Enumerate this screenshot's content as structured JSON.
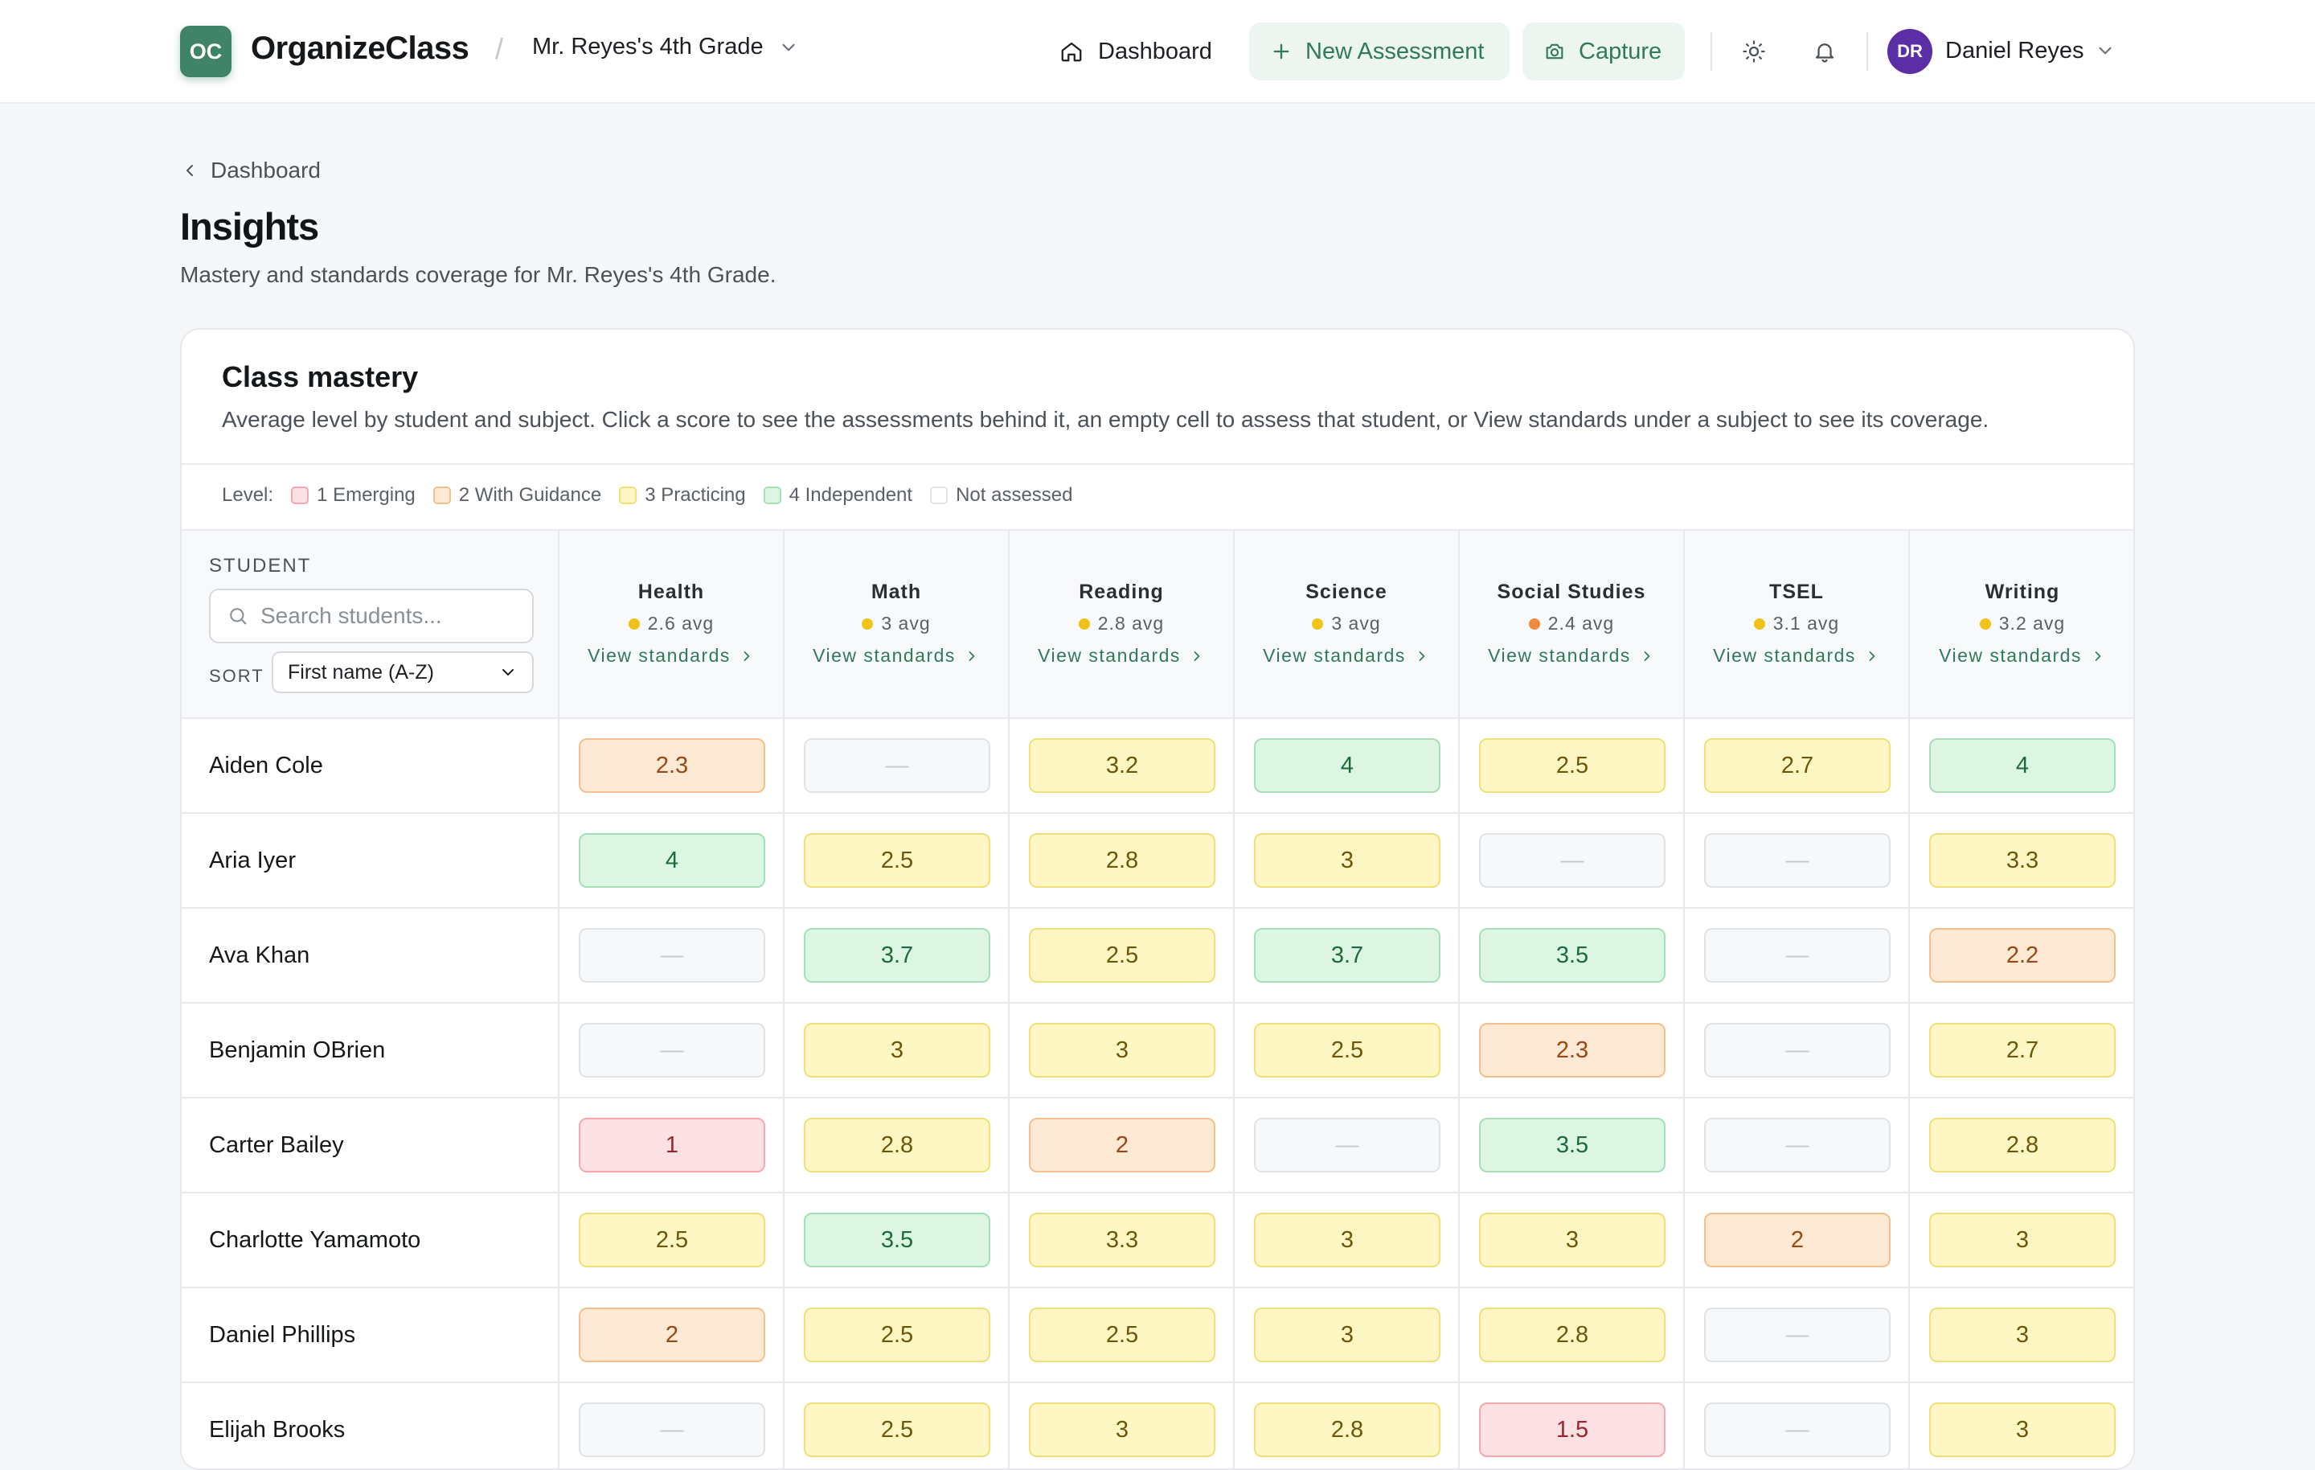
{
  "topbar": {
    "logo_initials": "OC",
    "app_name": "OrganizeClass",
    "separator": "/",
    "class_name": "Mr. Reyes's 4th Grade",
    "nav_dashboard": "Dashboard",
    "new_assessment": "New Assessment",
    "capture": "Capture",
    "user_initials": "DR",
    "user_name": "Daniel Reyes"
  },
  "page": {
    "back_label": "Dashboard",
    "title": "Insights",
    "subtitle": "Mastery and standards coverage for Mr. Reyes's 4th Grade."
  },
  "card": {
    "title": "Class mastery",
    "description": "Average level by student and subject. Click a score to see the assessments behind it, an empty cell to assess that student, or View standards under a subject to see its coverage.",
    "legend_label": "Level:",
    "legend": [
      {
        "label": "1 Emerging",
        "bg": "#fde0e2",
        "border": "#f3a9ae"
      },
      {
        "label": "2 With Guidance",
        "bg": "#fde9d4",
        "border": "#f5c08e"
      },
      {
        "label": "3 Practicing",
        "bg": "#fef7c3",
        "border": "#f1df7a"
      },
      {
        "label": "4 Independent",
        "bg": "#dcf6e3",
        "border": "#a7e0b8"
      },
      {
        "label": "Not assessed",
        "bg": "#ffffff",
        "border": "#e0e3e6"
      }
    ],
    "student_header": "STUDENT",
    "search_placeholder": "Search students...",
    "sort_label": "SORT",
    "sort_value": "First name (A-Z)",
    "view_standards": "View standards",
    "subjects": [
      {
        "name": "Health",
        "avg": "2.6 avg",
        "dot": "#f2c218"
      },
      {
        "name": "Math",
        "avg": "3 avg",
        "dot": "#f2c218"
      },
      {
        "name": "Reading",
        "avg": "2.8 avg",
        "dot": "#f2c218"
      },
      {
        "name": "Science",
        "avg": "3 avg",
        "dot": "#f2c218"
      },
      {
        "name": "Social Studies",
        "avg": "2.4 avg",
        "dot": "#f08a3c"
      },
      {
        "name": "TSEL",
        "avg": "3.1 avg",
        "dot": "#f2c218"
      },
      {
        "name": "Writing",
        "avg": "3.2 avg",
        "dot": "#f2c218"
      }
    ],
    "empty_symbol": "—",
    "rows": [
      {
        "name": "Aiden Cole",
        "scores": [
          "2.3",
          "",
          "3.2",
          "4",
          "2.5",
          "2.7",
          "4"
        ]
      },
      {
        "name": "Aria Iyer",
        "scores": [
          "4",
          "2.5",
          "2.8",
          "3",
          "",
          "",
          "3.3"
        ]
      },
      {
        "name": "Ava Khan",
        "scores": [
          "",
          "3.7",
          "2.5",
          "3.7",
          "3.5",
          "",
          "2.2"
        ]
      },
      {
        "name": "Benjamin OBrien",
        "scores": [
          "",
          "3",
          "3",
          "2.5",
          "2.3",
          "",
          "2.7"
        ]
      },
      {
        "name": "Carter Bailey",
        "scores": [
          "1",
          "2.8",
          "2",
          "",
          "3.5",
          "",
          "2.8"
        ]
      },
      {
        "name": "Charlotte Yamamoto",
        "scores": [
          "2.5",
          "3.5",
          "3.3",
          "3",
          "3",
          "2",
          "3"
        ]
      },
      {
        "name": "Daniel Phillips",
        "scores": [
          "2",
          "2.5",
          "2.5",
          "3",
          "2.8",
          "",
          "3"
        ]
      },
      {
        "name": "Elijah Brooks",
        "scores": [
          "",
          "2.5",
          "3",
          "2.8",
          "1.5",
          "",
          "3"
        ]
      }
    ]
  }
}
